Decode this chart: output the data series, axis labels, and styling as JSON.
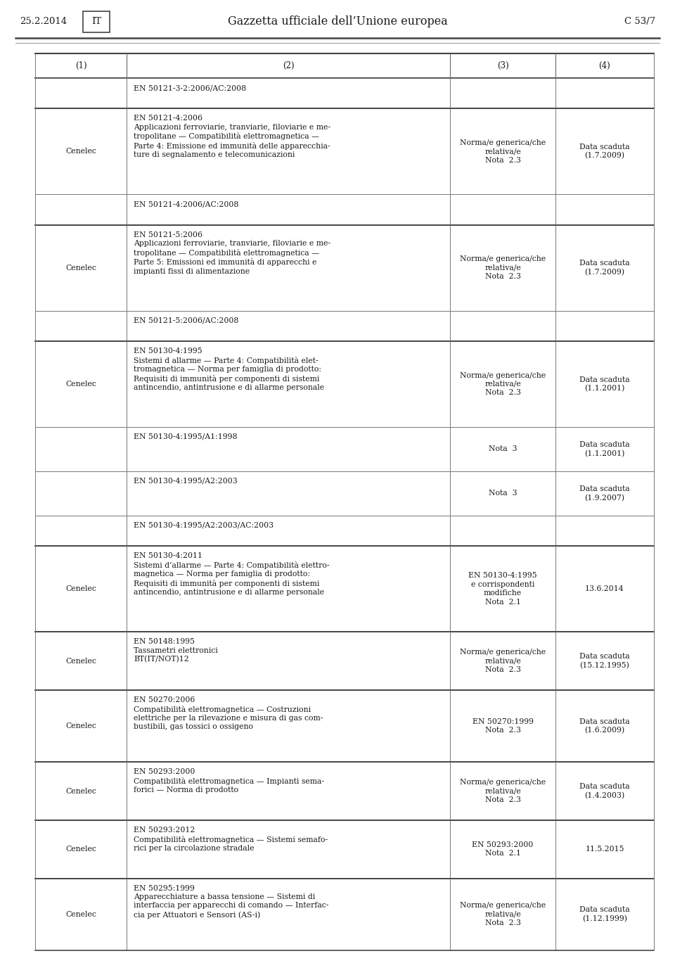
{
  "header_date": "25.2.2014",
  "header_lang": "IT",
  "header_title": "Gazzetta ufficiale dell’Unione europea",
  "header_right": "C 53/7",
  "col_headers": [
    "(1)",
    "(2)",
    "(3)",
    "(4)"
  ],
  "rows": [
    {
      "col1": "",
      "col2": "EN 50121-3-2:2006/AC:2008",
      "col3": "",
      "col4": "",
      "thick_top": false,
      "group_start": false
    },
    {
      "col1": "Cenelec",
      "col2": "EN 50121-4:2006\nApplicazioni ferroviarie, tranviarie, filoviarie e me-\ntropolitane — Compatibilità elettromagnetica —\nParte 4: Emissione ed immunità delle apparecchia-\nture di segnalamento e telecomunicazioni",
      "col3": "Norma/e generica/che\nrelativa/e\nNota  2.3",
      "col4": "Data scaduta\n(1.7.2009)",
      "thick_top": true,
      "group_start": true
    },
    {
      "col1": "",
      "col2": "EN 50121-4:2006/AC:2008",
      "col3": "",
      "col4": "",
      "thick_top": false,
      "group_start": false
    },
    {
      "col1": "Cenelec",
      "col2": "EN 50121-5:2006\nApplicazioni ferroviarie, tranviarie, filoviarie e me-\ntropolitane — Compatibilità elettromagnetica —\nParte 5: Emissioni ed immunità di apparecchi e\nimpianti fissi di alimentazione",
      "col3": "Norma/e generica/che\nrelativa/e\nNota  2.3",
      "col4": "Data scaduta\n(1.7.2009)",
      "thick_top": true,
      "group_start": true
    },
    {
      "col1": "",
      "col2": "EN 50121-5:2006/AC:2008",
      "col3": "",
      "col4": "",
      "thick_top": false,
      "group_start": false
    },
    {
      "col1": "Cenelec",
      "col2": "EN 50130-4:1995\nSistemi d allarme — Parte 4: Compatibilità elet-\ntromagnetica — Norma per famiglia di prodotto:\nRequisiti di immunità per componenti di sistemi\nantincendio, antintrusione e di allarme personale",
      "col3": "Norma/e generica/che\nrelativa/e\nNota  2.3",
      "col4": "Data scaduta\n(1.1.2001)",
      "thick_top": true,
      "group_start": true
    },
    {
      "col1": "",
      "col2": "EN 50130-4:1995/A1:1998",
      "col3": "Nota  3",
      "col4": "Data scaduta\n(1.1.2001)",
      "thick_top": false,
      "group_start": false
    },
    {
      "col1": "",
      "col2": "EN 50130-4:1995/A2:2003",
      "col3": "Nota  3",
      "col4": "Data scaduta\n(1.9.2007)",
      "thick_top": false,
      "group_start": false
    },
    {
      "col1": "",
      "col2": "EN 50130-4:1995/A2:2003/AC:2003",
      "col3": "",
      "col4": "",
      "thick_top": false,
      "group_start": false
    },
    {
      "col1": "Cenelec",
      "col2": "EN 50130-4:2011\nSistemi d’allarme — Parte 4: Compatibilità elettro-\nmagnetica — Norma per famiglia di prodotto:\nRequisiti di immunità per componenti di sistemi\nantincendio, antintrusione e di allarme personale",
      "col3": "EN 50130-4:1995\ne corrispondenti\nmodifiche\nNota  2.1",
      "col4": "13.6.2014",
      "thick_top": true,
      "group_start": true
    },
    {
      "col1": "Cenelec",
      "col2": "EN 50148:1995\nTassametri elettronici\nBT(IT/NOT)12",
      "col3": "Norma/e generica/che\nrelativa/e\nNota  2.3",
      "col4": "Data scaduta\n(15.12.1995)",
      "thick_top": true,
      "group_start": true
    },
    {
      "col1": "Cenelec",
      "col2": "EN 50270:2006\nCompatibilità elettromagnetica — Costruzioni\nelettriche per la rilevazione e misura di gas com-\nbustibili, gas tossici o ossigeno",
      "col3": "EN 50270:1999\nNota  2.3",
      "col4": "Data scaduta\n(1.6.2009)",
      "thick_top": true,
      "group_start": true
    },
    {
      "col1": "Cenelec",
      "col2": "EN 50293:2000\nCompatibilità elettromagnetica — Impianti sema-\nforici — Norma di prodotto",
      "col3": "Norma/e generica/che\nrelativa/e\nNota  2.3",
      "col4": "Data scaduta\n(1.4.2003)",
      "thick_top": true,
      "group_start": true
    },
    {
      "col1": "Cenelec",
      "col2": "EN 50293:2012\nCompatibilità elettromagnetica — Sistemi semafо-\nrici per la circolazione stradale",
      "col3": "EN 50293:2000\nNota  2.1",
      "col4": "11.5.2015",
      "thick_top": true,
      "group_start": true
    },
    {
      "col1": "Cenelec",
      "col2": "EN 50295:1999\nApparecchiature a bassa tensione — Sistemi di\ninterfaccia per apparecchi di comando — Interfac-\ncia per Attuatori e Sensori (AS-i)",
      "col3": "Norma/e generica/che\nrelativa/e\nNota  2.3",
      "col4": "Data scaduta\n(1.12.1999)",
      "thick_top": true,
      "group_start": true
    }
  ],
  "bg_color": "#ffffff",
  "text_color": "#1a1a1a",
  "line_color": "#777777",
  "thick_line_color": "#444444",
  "font_size": 8.0,
  "header_font_size": 10.0,
  "table_font_size": 7.8
}
